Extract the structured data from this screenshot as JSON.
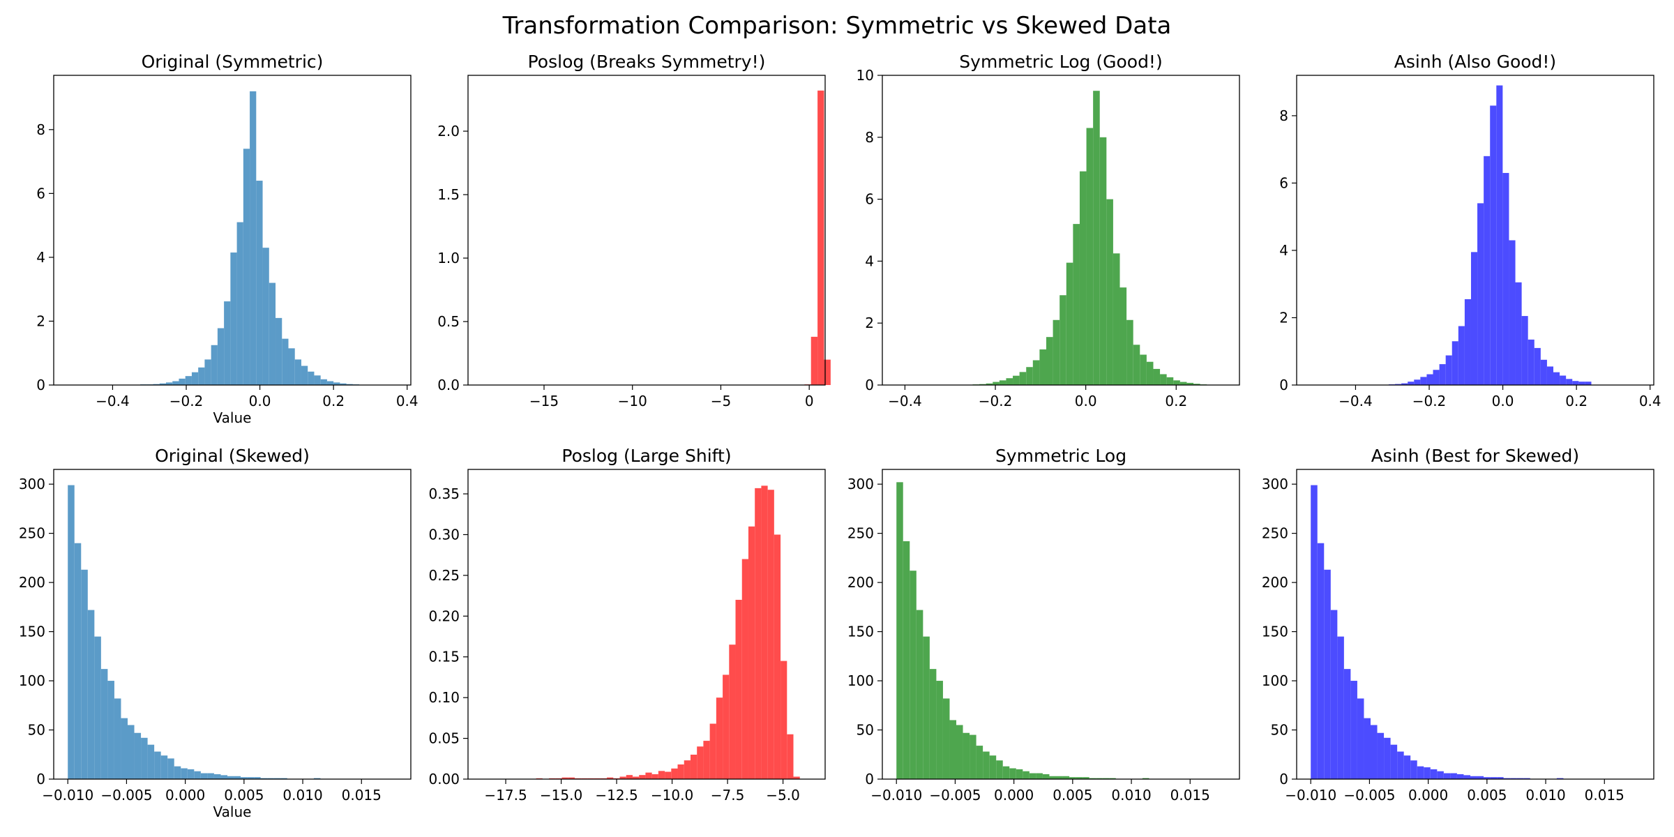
{
  "figure": {
    "title": "Transformation Comparison: Symmetric vs Skewed Data"
  },
  "chart_data": [
    {
      "type": "bar",
      "title": "Original (Symmetric)",
      "xlabel": "Value",
      "ylabel": "",
      "color": "#5b9bc8",
      "xlim": [
        -0.56,
        0.41
      ],
      "ylim": [
        0,
        9.7
      ],
      "xticks": [
        -0.4,
        -0.2,
        0.0,
        0.2,
        0.4
      ],
      "xtick_labels": [
        "−0.4",
        "−0.2",
        "0.0",
        "0.2",
        "0.4"
      ],
      "yticks": [
        0,
        2,
        4,
        6,
        8
      ],
      "ytick_labels": [
        "0",
        "2",
        "4",
        "6",
        "8"
      ],
      "bin_start": -0.36,
      "bin_width": 0.0175,
      "values": [
        0.01,
        0.01,
        0.02,
        0.02,
        0.03,
        0.05,
        0.08,
        0.12,
        0.2,
        0.28,
        0.4,
        0.55,
        0.8,
        1.25,
        1.78,
        2.62,
        4.15,
        5.1,
        7.4,
        9.2,
        6.4,
        4.3,
        3.2,
        2.1,
        1.45,
        1.15,
        0.8,
        0.6,
        0.42,
        0.3,
        0.18,
        0.12,
        0.08,
        0.05,
        0.03,
        0.02,
        0.01
      ]
    },
    {
      "type": "bar",
      "title": "Poslog (Breaks Symmetry!)",
      "xlabel": "",
      "ylabel": "",
      "color": "#ff4c4c",
      "xlim": [
        -19.3,
        0.9
      ],
      "ylim": [
        0,
        2.44
      ],
      "xticks": [
        -15,
        -10,
        -5,
        0
      ],
      "xtick_labels": [
        "−15",
        "−10",
        "−5",
        "0"
      ],
      "yticks": [
        0,
        0.5,
        1.0,
        1.5,
        2.0
      ],
      "ytick_labels": [
        "0.0",
        "0.5",
        "1.0",
        "1.5",
        "2.0"
      ],
      "bin_start": -18.4,
      "bin_width": 0.37,
      "values": [
        0,
        0,
        0,
        0,
        0,
        0,
        0,
        0,
        0,
        0,
        0,
        0,
        0,
        0,
        0,
        0,
        0,
        0,
        0,
        0,
        0,
        0,
        0,
        0,
        0,
        0,
        0,
        0,
        0,
        0,
        0,
        0,
        0,
        0,
        0,
        0,
        0,
        0,
        0,
        0,
        0,
        0,
        0,
        0,
        0,
        0,
        0,
        0.001,
        0.002,
        0.005,
        0.38,
        2.32,
        0.2
      ]
    },
    {
      "type": "bar",
      "title": "Symmetric Log (Good!)",
      "xlabel": "",
      "ylabel": "",
      "color": "#4ea64e",
      "xlim": [
        -0.45,
        0.34
      ],
      "ylim": [
        0,
        10
      ],
      "xticks": [
        -0.4,
        -0.2,
        0.0,
        0.2
      ],
      "xtick_labels": [
        "−0.4",
        "−0.2",
        "0.0",
        "0.2"
      ],
      "yticks": [
        0,
        2,
        4,
        6,
        8,
        10
      ],
      "ytick_labels": [
        "0",
        "2",
        "4",
        "6",
        "8",
        "10"
      ],
      "bin_start": -0.265,
      "bin_width": 0.0148,
      "values": [
        0.01,
        0.02,
        0.03,
        0.05,
        0.1,
        0.15,
        0.22,
        0.3,
        0.42,
        0.58,
        0.8,
        1.15,
        1.55,
        2.1,
        2.9,
        3.95,
        5.2,
        6.9,
        8.3,
        9.5,
        8.0,
        6.0,
        4.25,
        3.15,
        2.1,
        1.3,
        0.98,
        0.75,
        0.52,
        0.35,
        0.25,
        0.15,
        0.1,
        0.07,
        0.04,
        0.02,
        0.01
      ]
    },
    {
      "type": "bar",
      "title": "Asinh (Also Good!)",
      "xlabel": "",
      "ylabel": "",
      "color": "#4c4cff",
      "xlim": [
        -0.56,
        0.41
      ],
      "ylim": [
        0,
        9.2
      ],
      "xticks": [
        -0.4,
        -0.2,
        0.0,
        0.2,
        0.4
      ],
      "xtick_labels": [
        "−0.4",
        "−0.2",
        "0.0",
        "0.2",
        "0.4"
      ],
      "yticks": [
        0,
        2,
        4,
        6,
        8
      ],
      "ytick_labels": [
        "0",
        "2",
        "4",
        "6",
        "8"
      ],
      "bin_start": -0.31,
      "bin_width": 0.0172,
      "values": [
        0.02,
        0.03,
        0.05,
        0.1,
        0.16,
        0.24,
        0.32,
        0.45,
        0.62,
        0.88,
        1.3,
        1.75,
        2.55,
        3.95,
        5.4,
        6.8,
        8.3,
        8.9,
        6.3,
        4.3,
        3.05,
        2.05,
        1.35,
        1.1,
        0.75,
        0.55,
        0.38,
        0.28,
        0.18,
        0.12,
        0.1,
        0.1
      ]
    },
    {
      "type": "bar",
      "title": "Original (Skewed)",
      "xlabel": "Value",
      "ylabel": "",
      "color": "#5b9bc8",
      "xlim": [
        -0.0112,
        0.0192
      ],
      "ylim": [
        0,
        315
      ],
      "xticks": [
        -0.01,
        -0.005,
        0.0,
        0.005,
        0.01,
        0.015
      ],
      "xtick_labels": [
        "−0.010",
        "−0.005",
        "0.000",
        "0.005",
        "0.010",
        "0.015"
      ],
      "yticks": [
        0,
        50,
        100,
        150,
        200,
        250,
        300
      ],
      "ytick_labels": [
        "0",
        "50",
        "100",
        "150",
        "200",
        "250",
        "300"
      ],
      "bin_start": -0.01,
      "bin_width": 0.000566,
      "values": [
        299,
        240,
        213,
        172,
        145,
        112,
        100,
        82,
        62,
        55,
        47,
        42,
        35,
        28,
        24,
        21,
        13,
        11,
        10,
        8,
        6,
        6,
        5,
        4,
        3,
        3,
        2,
        2,
        2,
        1,
        1,
        1,
        1,
        0,
        0,
        0,
        0,
        1,
        0,
        0,
        0,
        0,
        0,
        0,
        0,
        0,
        0,
        0,
        0,
        0,
        0
      ]
    },
    {
      "type": "bar",
      "title": "Poslog (Large Shift)",
      "xlabel": "",
      "ylabel": "",
      "color": "#ff4c4c",
      "xlim": [
        -19.2,
        -3.1
      ],
      "ylim": [
        0,
        0.38
      ],
      "xticks": [
        -17.5,
        -15.0,
        -12.5,
        -10.0,
        -7.5,
        -5.0
      ],
      "xtick_labels": [
        "−17.5",
        "−15.0",
        "−12.5",
        "−10.0",
        "−7.5",
        "−5.0"
      ],
      "yticks": [
        0,
        0.05,
        0.1,
        0.15,
        0.2,
        0.25,
        0.3,
        0.35
      ],
      "ytick_labels": [
        "0.00",
        "0.05",
        "0.10",
        "0.15",
        "0.20",
        "0.25",
        "0.30",
        "0.35"
      ],
      "bin_start": -18.45,
      "bin_width": 0.29,
      "values": [
        0,
        0,
        0,
        0,
        0,
        0,
        0,
        0,
        0.001,
        0,
        0.001,
        0.001,
        0.002,
        0.002,
        0.001,
        0.001,
        0.001,
        0.001,
        0.001,
        0.002,
        0.001,
        0.003,
        0.005,
        0.003,
        0.005,
        0.008,
        0.006,
        0.01,
        0.009,
        0.013,
        0.018,
        0.023,
        0.03,
        0.04,
        0.047,
        0.068,
        0.1,
        0.128,
        0.165,
        0.22,
        0.27,
        0.31,
        0.357,
        0.36,
        0.355,
        0.3,
        0.145,
        0.055,
        0.003
      ]
    },
    {
      "type": "bar",
      "title": "Symmetric Log",
      "xlabel": "",
      "ylabel": "",
      "color": "#4ea64e",
      "xlim": [
        -0.0112,
        0.0192
      ],
      "ylim": [
        0,
        315
      ],
      "xticks": [
        -0.01,
        -0.005,
        0.0,
        0.005,
        0.01,
        0.015
      ],
      "xtick_labels": [
        "−0.010",
        "−0.005",
        "0.000",
        "0.005",
        "0.010",
        "0.015"
      ],
      "yticks": [
        0,
        50,
        100,
        150,
        200,
        250,
        300
      ],
      "ytick_labels": [
        "0",
        "50",
        "100",
        "150",
        "200",
        "250",
        "300"
      ],
      "bin_start": -0.01,
      "bin_width": 0.000566,
      "values": [
        302,
        242,
        212,
        172,
        145,
        112,
        100,
        82,
        60,
        55,
        47,
        45,
        34,
        28,
        24,
        19,
        13,
        11,
        10,
        8,
        6,
        6,
        5,
        3,
        3,
        3,
        2,
        2,
        2,
        1,
        1,
        1,
        1,
        0,
        0,
        0,
        0,
        1,
        0,
        0,
        0,
        0,
        0,
        0,
        0,
        0,
        0,
        0,
        0,
        0,
        0
      ]
    },
    {
      "type": "bar",
      "title": "Asinh (Best for Skewed)",
      "xlabel": "",
      "ylabel": "",
      "color": "#4c4cff",
      "xlim": [
        -0.0112,
        0.0192
      ],
      "ylim": [
        0,
        315
      ],
      "xticks": [
        -0.01,
        -0.005,
        0.0,
        0.005,
        0.01,
        0.015
      ],
      "xtick_labels": [
        "−0.010",
        "−0.005",
        "0.000",
        "0.005",
        "0.010",
        "0.015"
      ],
      "yticks": [
        0,
        50,
        100,
        150,
        200,
        250,
        300
      ],
      "ytick_labels": [
        "0",
        "50",
        "100",
        "150",
        "200",
        "250",
        "300"
      ],
      "bin_start": -0.01,
      "bin_width": 0.000566,
      "values": [
        299,
        240,
        213,
        172,
        145,
        112,
        100,
        82,
        62,
        55,
        47,
        42,
        35,
        28,
        24,
        19,
        13,
        12,
        10,
        8,
        6,
        6,
        5,
        4,
        3,
        3,
        2,
        2,
        2,
        1,
        1,
        1,
        1,
        0,
        0,
        0,
        0,
        1,
        0,
        0,
        0,
        0,
        0,
        0,
        0,
        0,
        0,
        0,
        0,
        0,
        0
      ]
    }
  ]
}
